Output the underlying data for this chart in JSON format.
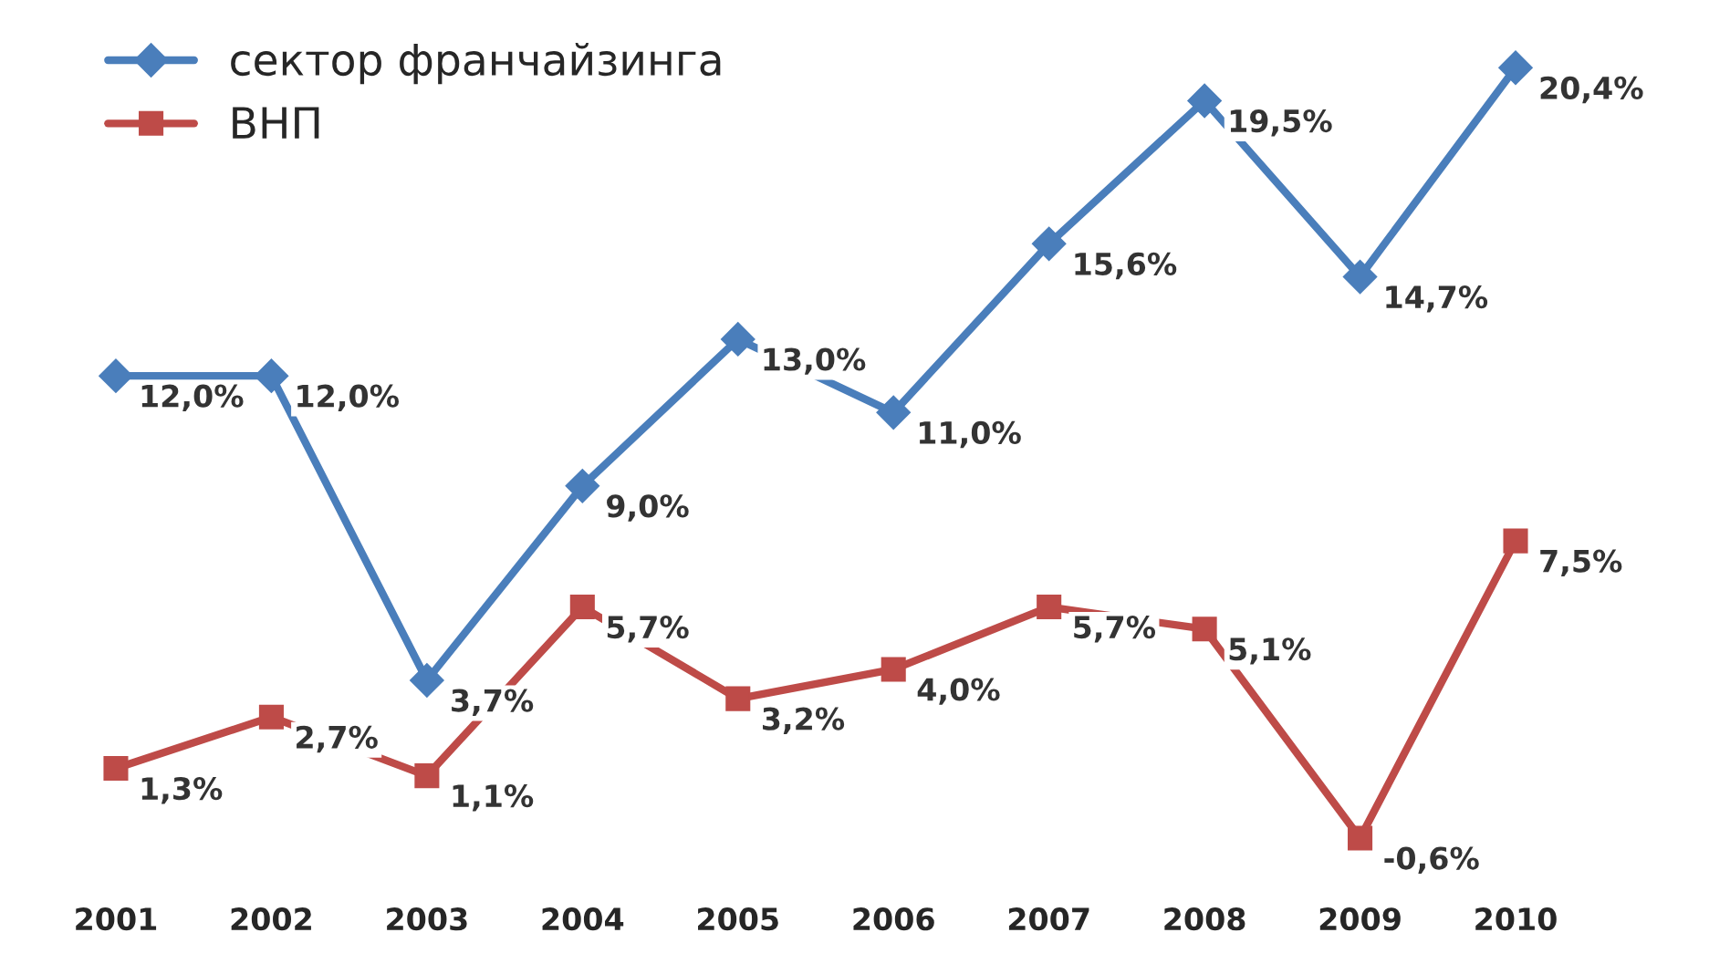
{
  "chart_data": {
    "type": "line",
    "categories": [
      "2001",
      "2002",
      "2003",
      "2004",
      "2005",
      "2006",
      "2007",
      "2008",
      "2009",
      "2010"
    ],
    "series": [
      {
        "name": "сектор франчайзинга",
        "color": "#4a7ebb",
        "marker": "diamond",
        "values": [
          12.0,
          12.0,
          3.7,
          9.0,
          13.0,
          11.0,
          15.6,
          19.5,
          14.7,
          20.4
        ],
        "value_labels": [
          "12,0%",
          "12,0%",
          "3,7%",
          "9,0%",
          "13,0%",
          "11,0%",
          "15,6%",
          "19,5%",
          "14,7%",
          "20,4%"
        ]
      },
      {
        "name": "ВНП",
        "color": "#be4b48",
        "marker": "square",
        "values": [
          1.3,
          2.7,
          1.1,
          5.7,
          3.2,
          4.0,
          5.7,
          5.1,
          -0.6,
          7.5
        ],
        "value_labels": [
          "1,3%",
          "2,7%",
          "1,1%",
          "5,7%",
          "3,2%",
          "4,0%",
          "5,7%",
          "5,1%",
          "-0,6%",
          "7,5%"
        ]
      }
    ],
    "grid": false,
    "legend": "top left",
    "tick_labels": "x"
  }
}
